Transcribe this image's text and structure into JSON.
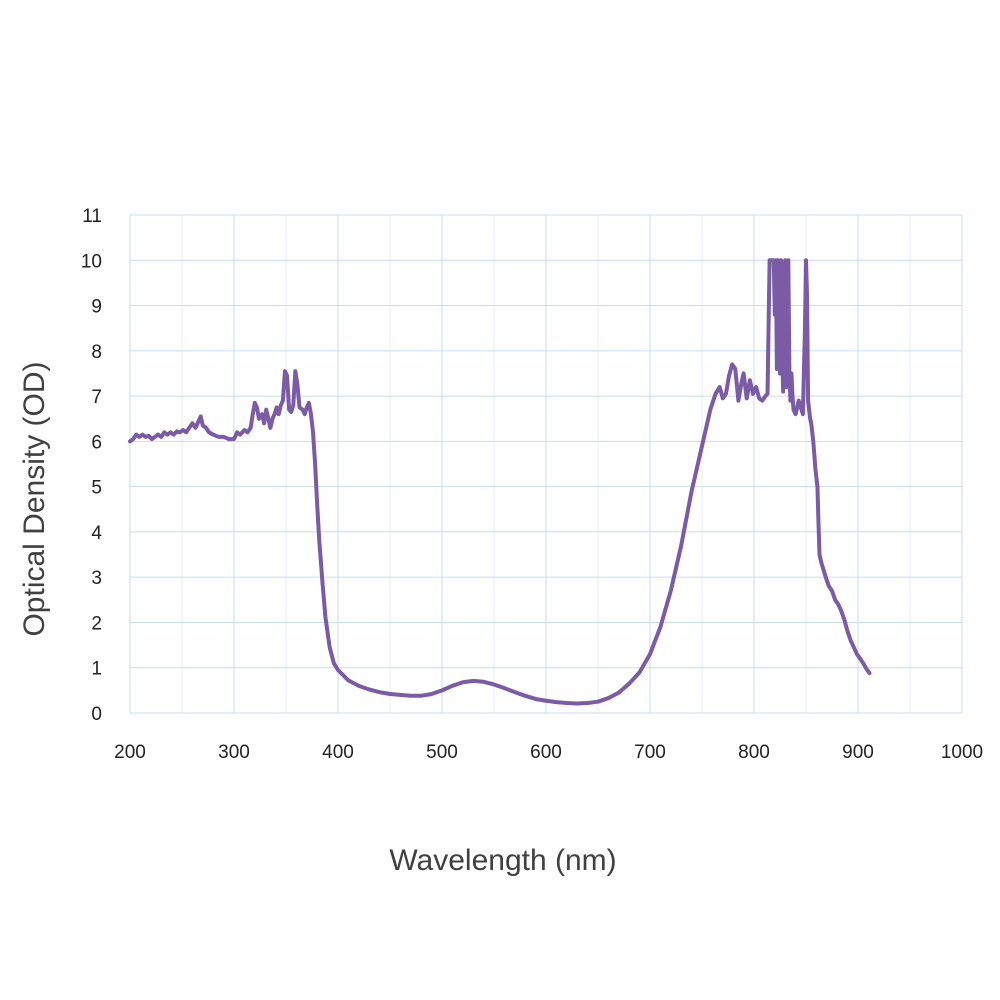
{
  "chart_data": {
    "type": "line",
    "title": "",
    "xlabel": "Wavelength (nm)",
    "ylabel": "Optical Density (OD)",
    "xlim": [
      200,
      1000
    ],
    "ylim": [
      0,
      11
    ],
    "x_ticks": [
      200,
      300,
      400,
      500,
      600,
      700,
      800,
      900,
      1000
    ],
    "y_ticks": [
      0,
      1,
      2,
      3,
      4,
      5,
      6,
      7,
      8,
      9,
      10,
      11
    ],
    "grid": true,
    "minor_grid_x": true,
    "legend": "none",
    "series": [
      {
        "color": "#7b5aa6",
        "points": [
          [
            200,
            6.0
          ],
          [
            203,
            6.05
          ],
          [
            206,
            6.15
          ],
          [
            209,
            6.1
          ],
          [
            212,
            6.15
          ],
          [
            215,
            6.1
          ],
          [
            218,
            6.12
          ],
          [
            221,
            6.05
          ],
          [
            224,
            6.1
          ],
          [
            227,
            6.15
          ],
          [
            230,
            6.1
          ],
          [
            233,
            6.2
          ],
          [
            236,
            6.15
          ],
          [
            239,
            6.2
          ],
          [
            242,
            6.15
          ],
          [
            245,
            6.22
          ],
          [
            248,
            6.2
          ],
          [
            251,
            6.25
          ],
          [
            254,
            6.2
          ],
          [
            257,
            6.3
          ],
          [
            260,
            6.4
          ],
          [
            263,
            6.3
          ],
          [
            266,
            6.45
          ],
          [
            268,
            6.55
          ],
          [
            270,
            6.35
          ],
          [
            273,
            6.3
          ],
          [
            276,
            6.2
          ],
          [
            280,
            6.15
          ],
          [
            285,
            6.1
          ],
          [
            290,
            6.1
          ],
          [
            295,
            6.05
          ],
          [
            300,
            6.05
          ],
          [
            303,
            6.2
          ],
          [
            306,
            6.15
          ],
          [
            310,
            6.25
          ],
          [
            313,
            6.2
          ],
          [
            316,
            6.3
          ],
          [
            318,
            6.6
          ],
          [
            320,
            6.85
          ],
          [
            322,
            6.75
          ],
          [
            324,
            6.5
          ],
          [
            327,
            6.6
          ],
          [
            329,
            6.4
          ],
          [
            331,
            6.7
          ],
          [
            333,
            6.5
          ],
          [
            335,
            6.3
          ],
          [
            337,
            6.5
          ],
          [
            339,
            6.6
          ],
          [
            341,
            6.75
          ],
          [
            343,
            6.6
          ],
          [
            345,
            6.8
          ],
          [
            347,
            6.9
          ],
          [
            349,
            7.55
          ],
          [
            351,
            7.45
          ],
          [
            353,
            6.7
          ],
          [
            355,
            6.65
          ],
          [
            357,
            6.8
          ],
          [
            359,
            7.55
          ],
          [
            361,
            7.25
          ],
          [
            363,
            6.75
          ],
          [
            366,
            6.7
          ],
          [
            368,
            6.6
          ],
          [
            370,
            6.75
          ],
          [
            372,
            6.85
          ],
          [
            374,
            6.6
          ],
          [
            376,
            6.2
          ],
          [
            378,
            5.5
          ],
          [
            380,
            4.6
          ],
          [
            382,
            3.8
          ],
          [
            385,
            2.9
          ],
          [
            388,
            2.1
          ],
          [
            392,
            1.45
          ],
          [
            396,
            1.1
          ],
          [
            400,
            0.95
          ],
          [
            410,
            0.72
          ],
          [
            420,
            0.6
          ],
          [
            430,
            0.52
          ],
          [
            440,
            0.46
          ],
          [
            450,
            0.42
          ],
          [
            460,
            0.4
          ],
          [
            470,
            0.38
          ],
          [
            480,
            0.38
          ],
          [
            490,
            0.42
          ],
          [
            500,
            0.5
          ],
          [
            510,
            0.6
          ],
          [
            520,
            0.68
          ],
          [
            530,
            0.71
          ],
          [
            540,
            0.69
          ],
          [
            550,
            0.63
          ],
          [
            560,
            0.55
          ],
          [
            570,
            0.46
          ],
          [
            580,
            0.38
          ],
          [
            590,
            0.31
          ],
          [
            600,
            0.27
          ],
          [
            610,
            0.24
          ],
          [
            620,
            0.22
          ],
          [
            630,
            0.21
          ],
          [
            640,
            0.22
          ],
          [
            650,
            0.25
          ],
          [
            660,
            0.33
          ],
          [
            670,
            0.45
          ],
          [
            680,
            0.65
          ],
          [
            690,
            0.9
          ],
          [
            700,
            1.3
          ],
          [
            710,
            1.9
          ],
          [
            720,
            2.7
          ],
          [
            730,
            3.7
          ],
          [
            740,
            4.9
          ],
          [
            750,
            5.9
          ],
          [
            758,
            6.7
          ],
          [
            763,
            7.05
          ],
          [
            767,
            7.2
          ],
          [
            770,
            6.95
          ],
          [
            773,
            7.05
          ],
          [
            776,
            7.45
          ],
          [
            779,
            7.7
          ],
          [
            782,
            7.6
          ],
          [
            785,
            6.9
          ],
          [
            788,
            7.3
          ],
          [
            790,
            7.5
          ],
          [
            793,
            6.95
          ],
          [
            796,
            7.35
          ],
          [
            799,
            7.05
          ],
          [
            802,
            7.2
          ],
          [
            805,
            6.95
          ],
          [
            808,
            6.9
          ],
          [
            811,
            7.0
          ],
          [
            813,
            7.05
          ],
          [
            815,
            10.0
          ],
          [
            817,
            10.0
          ],
          [
            819,
            10.0
          ],
          [
            820,
            8.8
          ],
          [
            821,
            10.0
          ],
          [
            822,
            7.6
          ],
          [
            823,
            10.0
          ],
          [
            824,
            9.0
          ],
          [
            825,
            7.5
          ],
          [
            826,
            10.0
          ],
          [
            827,
            8.2
          ],
          [
            828,
            7.1
          ],
          [
            829,
            9.5
          ],
          [
            830,
            10.0
          ],
          [
            831,
            7.2
          ],
          [
            832,
            8.5
          ],
          [
            833,
            10.0
          ],
          [
            834,
            7.6
          ],
          [
            835,
            6.9
          ],
          [
            836,
            7.5
          ],
          [
            837,
            7.0
          ],
          [
            838,
            6.7
          ],
          [
            840,
            6.6
          ],
          [
            843,
            6.9
          ],
          [
            845,
            6.75
          ],
          [
            847,
            6.6
          ],
          [
            849,
            8.5
          ],
          [
            850,
            10.0
          ],
          [
            851,
            9.2
          ],
          [
            852,
            6.9
          ],
          [
            854,
            6.5
          ],
          [
            855,
            6.4
          ],
          [
            857,
            6.0
          ],
          [
            859,
            5.4
          ],
          [
            861,
            5.0
          ],
          [
            862,
            4.2
          ],
          [
            863,
            3.5
          ],
          [
            865,
            3.3
          ],
          [
            867,
            3.15
          ],
          [
            869,
            3.0
          ],
          [
            872,
            2.8
          ],
          [
            875,
            2.7
          ],
          [
            878,
            2.5
          ],
          [
            881,
            2.4
          ],
          [
            884,
            2.25
          ],
          [
            887,
            2.05
          ],
          [
            890,
            1.8
          ],
          [
            893,
            1.6
          ],
          [
            896,
            1.45
          ],
          [
            899,
            1.3
          ],
          [
            902,
            1.2
          ],
          [
            905,
            1.1
          ],
          [
            908,
            0.98
          ],
          [
            911,
            0.88
          ]
        ]
      }
    ]
  }
}
